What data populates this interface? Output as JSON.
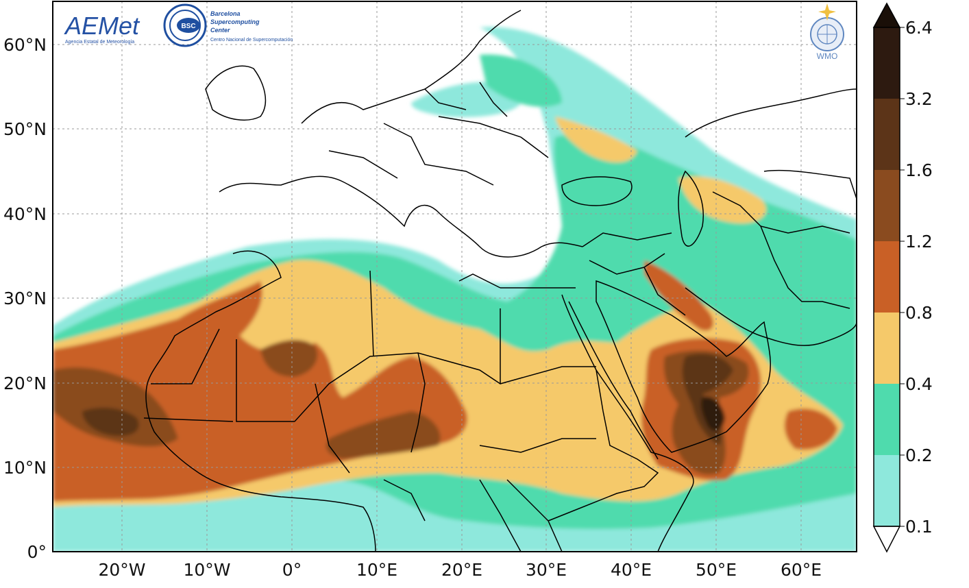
{
  "map": {
    "lat_labels": [
      "60°N",
      "50°N",
      "40°N",
      "30°N",
      "20°N",
      "10°N",
      "0°"
    ],
    "lon_labels": [
      "20°W",
      "10°W",
      "0°",
      "10°E",
      "20°E",
      "30°E",
      "40°E",
      "50°E",
      "60°E"
    ],
    "extent": {
      "lon_min": -28,
      "lon_max": 67,
      "lat_min": 0,
      "lat_max": 65
    },
    "gridlines": true
  },
  "colorbar": {
    "levels": [
      "6.4",
      "3.2",
      "1.6",
      "1.2",
      "0.8",
      "0.4",
      "0.2",
      "0.1"
    ],
    "colors": [
      "#2d1a10",
      "#5c3418",
      "#8a4b1f",
      "#c96026",
      "#f5c96a",
      "#4fdbad",
      "#8ee8dc",
      "#ffffff"
    ],
    "extend": "both"
  },
  "logos": {
    "aemet": {
      "name": "AEMET",
      "word": "AEMet",
      "sub": "Agencia Estatal de Meteorología"
    },
    "bsc": {
      "badge": "BSC",
      "line1": "Barcelona",
      "line2": "Supercomputing",
      "line3": "Center",
      "line4": "Centro Nacional de Supercomputación"
    },
    "wmo": {
      "text": "WMO"
    }
  }
}
